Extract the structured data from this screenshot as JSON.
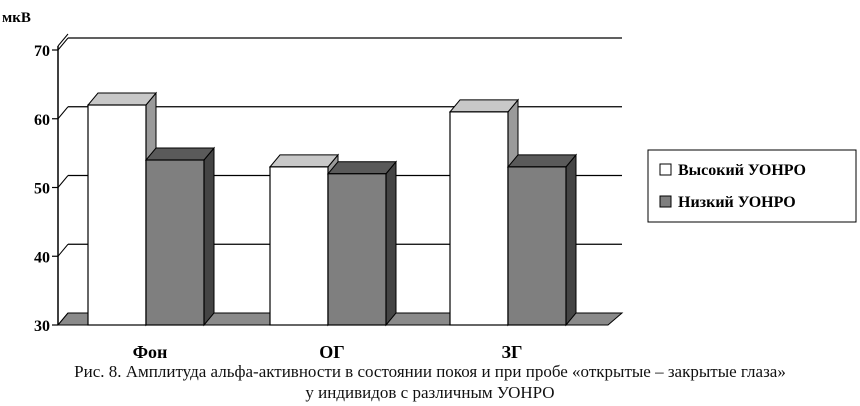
{
  "chart_data": {
    "type": "bar",
    "ylabel": "мкВ",
    "ylim": [
      30,
      70
    ],
    "yticks": [
      30,
      40,
      50,
      60,
      70
    ],
    "categories": [
      "Фон",
      "ОГ",
      "ЗГ"
    ],
    "series": [
      {
        "name": "Высокий УОНРО",
        "values": [
          62,
          53,
          61
        ],
        "color": "#ffffff"
      },
      {
        "name": "Низкий УОНРО",
        "values": [
          54,
          52,
          53
        ],
        "color": "#7f7f7f"
      }
    ],
    "grid": true,
    "legend": "right"
  },
  "caption": {
    "line1": "Рис. 8. Амплитуда альфа-активности в состоянии покоя и при пробе «открытые – закрытые глаза»",
    "line2": "у индивидов с различным УОНРО"
  }
}
